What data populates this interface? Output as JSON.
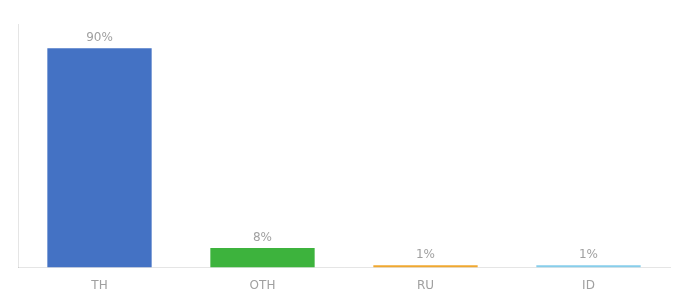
{
  "chart_data": {
    "type": "bar",
    "categories": [
      "TH",
      "OTH",
      "RU",
      "ID"
    ],
    "values": [
      90,
      8,
      1,
      1
    ],
    "value_labels": [
      "90%",
      "8%",
      "1%",
      "1%"
    ],
    "colors": [
      "#4472c4",
      "#3db33d",
      "#f0a830",
      "#87ceeb"
    ],
    "ylim": [
      0,
      100
    ],
    "tick_labels": "x",
    "data_labels": true,
    "grid": false
  }
}
